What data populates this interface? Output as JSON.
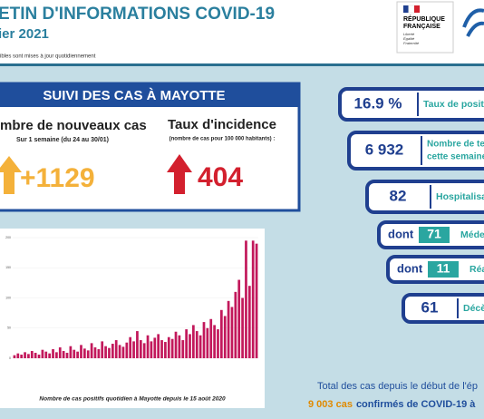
{
  "header": {
    "title": "ETIN D'INFORMATIONS COVID-19",
    "date": "ier 2021",
    "note": "ibles sont mises à jour quotidiennement",
    "logo": [
      "RÉPUBLIQUE",
      "FRANÇAISE"
    ],
    "motto": [
      "Liberté",
      "Égalité",
      "Fraternité"
    ]
  },
  "cases_box": {
    "title": "SUIVI DES CAS À MAYOTTE",
    "new_cases": {
      "label": "mbre de nouveaux cas",
      "sub": "Sur 1 semaine (du 24 au 30/01)",
      "value": "+1129"
    },
    "incidence": {
      "label": "Taux d'incidence",
      "sub": "(nombre de cas pour 100 000 habitants) :",
      "value": "404"
    }
  },
  "indicators": [
    {
      "value": "16.9 %",
      "label": "Taux de positi"
    },
    {
      "value": "6 932",
      "label": "Nombre de tests",
      "label2": "cette semaine"
    },
    {
      "value": "82",
      "label": "Hospitalisat"
    },
    {
      "prefix": "dont",
      "value": "71",
      "label": "Médec"
    },
    {
      "prefix": "dont",
      "value": "11",
      "label": "Réani"
    },
    {
      "value": "61",
      "label": "Décès"
    }
  ],
  "total": {
    "line1": "Total des cas depuis le début de l'ép",
    "count": "9 003 cas",
    "rest": "confirmés de COVID-19 à"
  },
  "chart_data": {
    "type": "bar",
    "title": "Nombre de cas positifs quotidien à Mayotte depuis le 15 août 2020",
    "color": "#c2185b",
    "values": [
      5,
      8,
      6,
      10,
      7,
      12,
      9,
      6,
      14,
      11,
      8,
      15,
      10,
      18,
      12,
      9,
      20,
      14,
      11,
      22,
      16,
      13,
      25,
      18,
      15,
      28,
      20,
      17,
      24,
      30,
      22,
      19,
      26,
      35,
      28,
      45,
      30,
      25,
      38,
      28,
      34,
      40,
      30,
      27,
      35,
      32,
      44,
      38,
      30,
      48,
      40,
      55,
      45,
      38,
      60,
      50,
      65,
      55,
      48,
      80,
      70,
      95,
      85,
      110,
      130,
      100,
      195,
      120,
      195,
      190
    ],
    "ylim": [
      0,
      200
    ],
    "yticks": [
      0,
      50,
      100,
      150,
      200
    ]
  }
}
